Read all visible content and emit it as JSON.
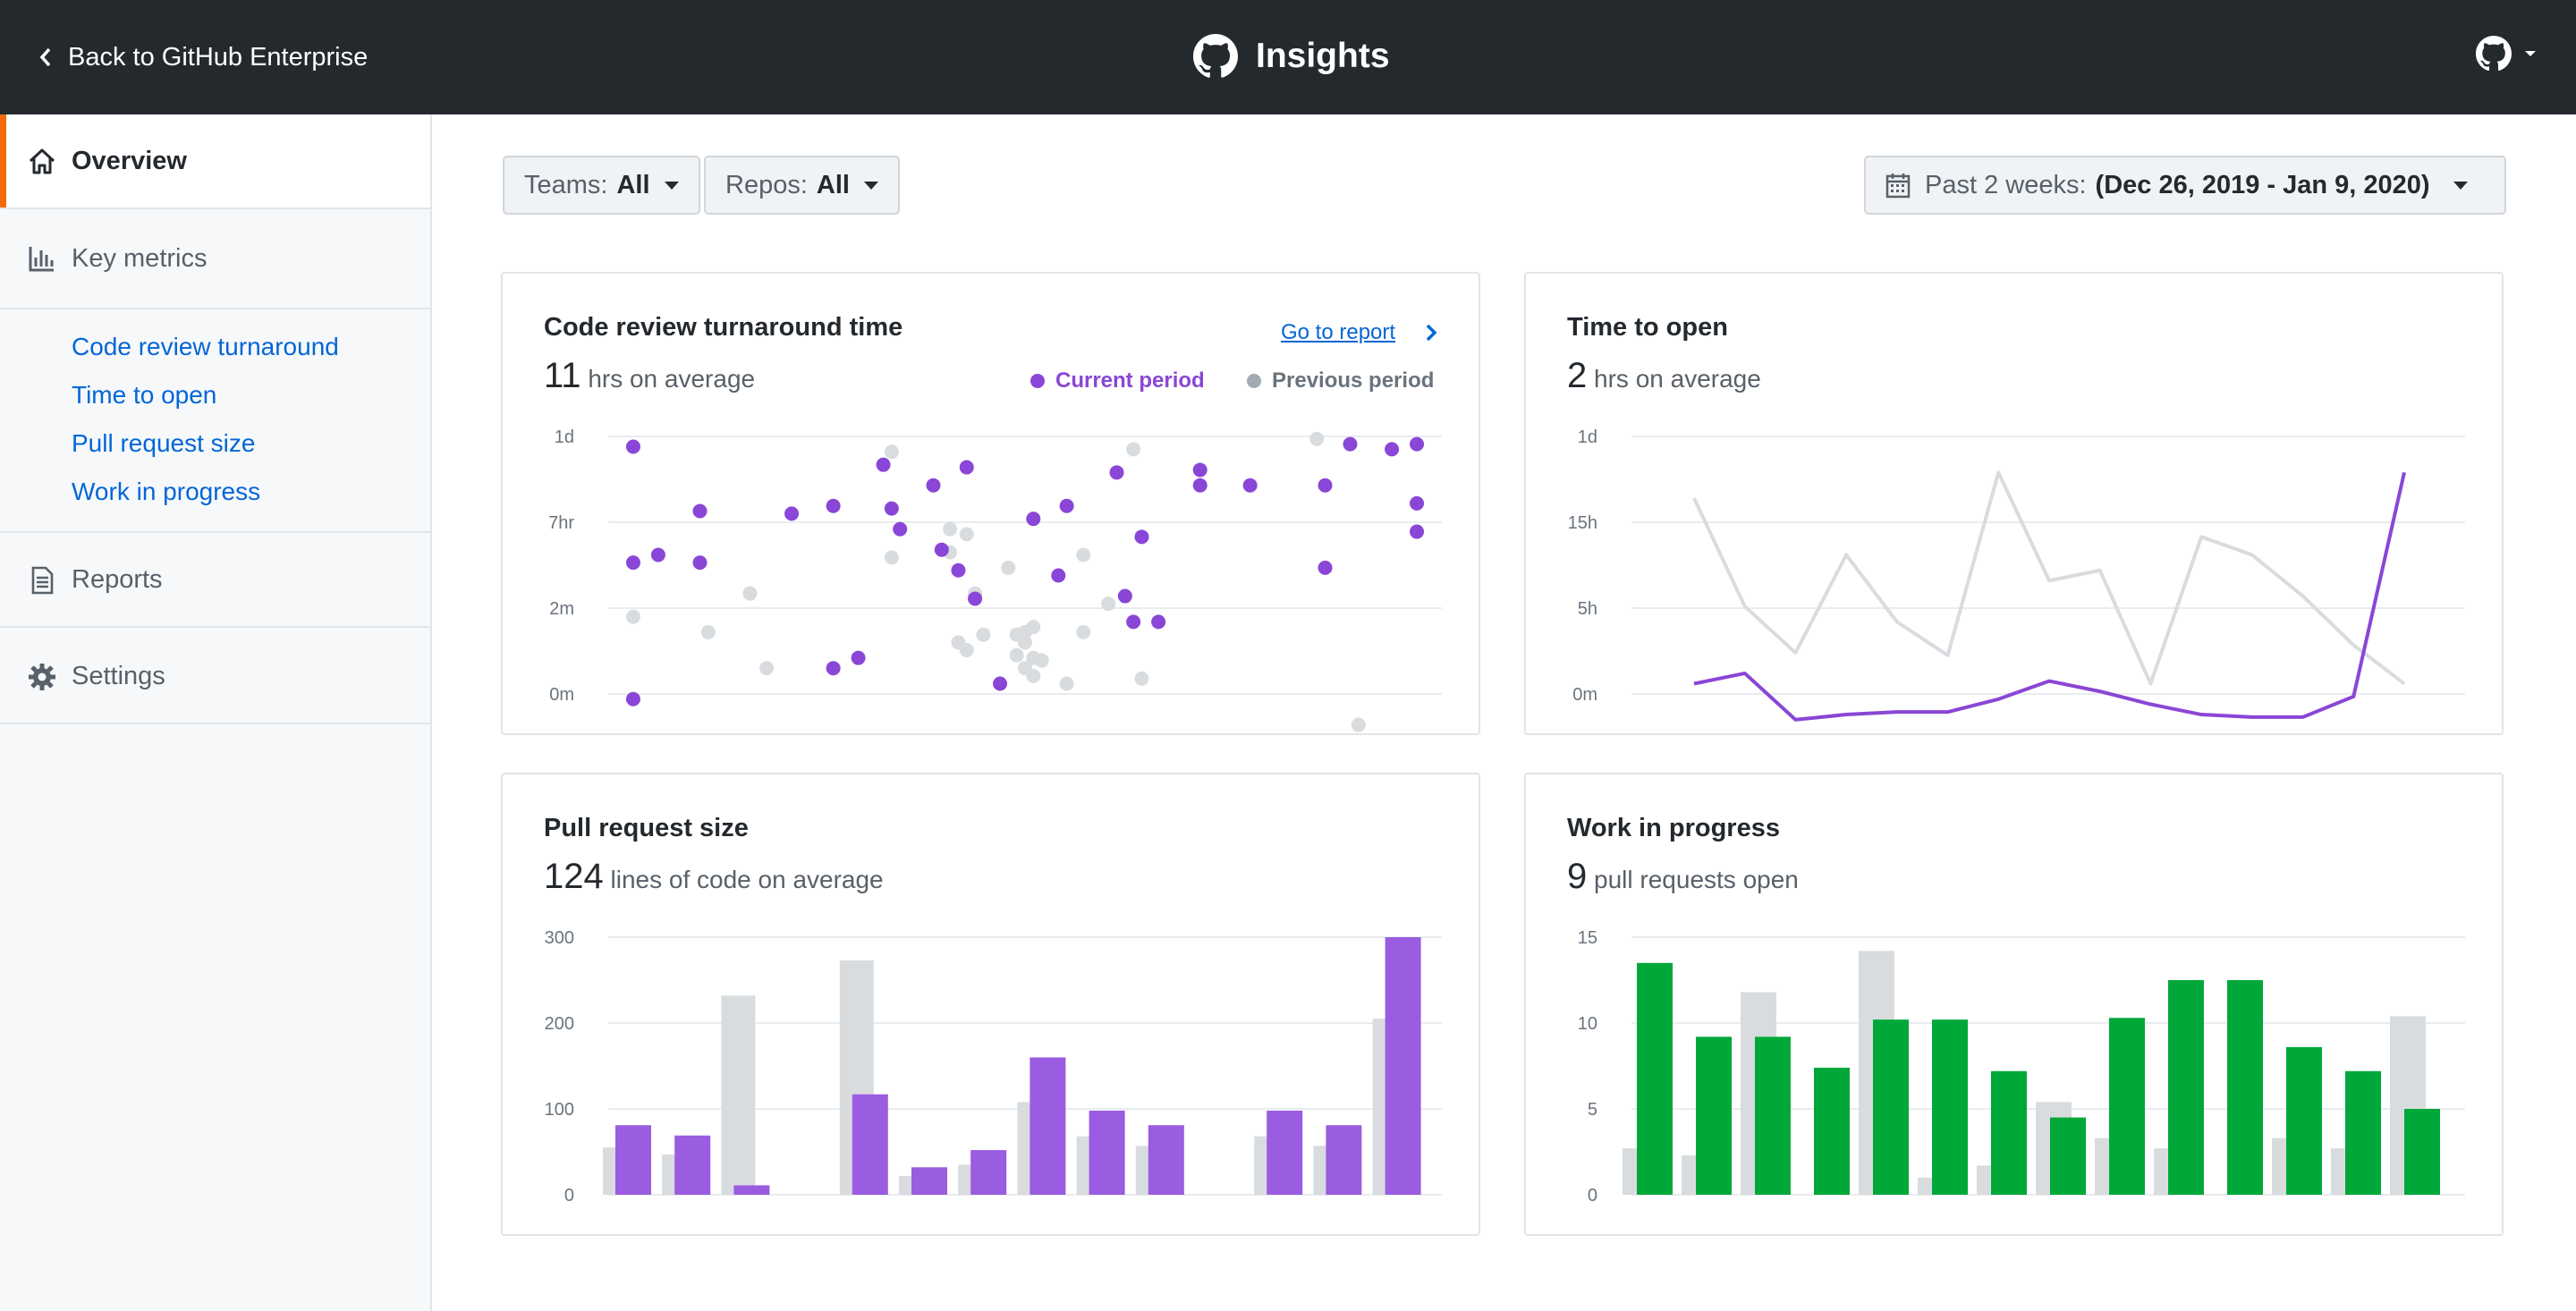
{
  "header": {
    "back_label": "Back to GitHub Enterprise",
    "app_title": "Insights"
  },
  "sidebar": {
    "overview": "Overview",
    "key_metrics": "Key metrics",
    "metric_links": [
      "Code review turnaround",
      "Time to open",
      "Pull request size",
      "Work in progress"
    ],
    "reports": "Reports",
    "settings": "Settings"
  },
  "filters": {
    "teams_label": "Teams:",
    "teams_value": "All",
    "repos_label": "Repos:",
    "repos_value": "All",
    "range_label": "Past 2 weeks:",
    "range_value": "(Dec 26, 2019 - Jan 9, 2020)"
  },
  "colors": {
    "purple": "#8a46d6",
    "purple_bar": "#9a5ce0",
    "gray": "#d9dcdf",
    "green": "#00a83a",
    "accent": "#f66a0a",
    "link": "#0366d6"
  },
  "cards": {
    "review": {
      "title": "Code review turnaround time",
      "metric": "11",
      "metric_unit": "hrs on average",
      "report_link": "Go to report",
      "legend_current": "Current period",
      "legend_previous": "Previous period"
    },
    "open": {
      "title": "Time to open",
      "metric": "2",
      "metric_unit": "hrs on average"
    },
    "prsize": {
      "title": "Pull request size",
      "metric": "124",
      "metric_unit": "lines of code on average"
    },
    "wip": {
      "title": "Work in progress",
      "metric": "9",
      "metric_unit": "pull requests open"
    }
  },
  "chart_data": [
    {
      "type": "scatter",
      "title": "Code review turnaround time",
      "y_ticks": [
        "1d",
        "7hr",
        "2m",
        "0m"
      ],
      "series": [
        {
          "name": "Current period",
          "color": "#8a46d6",
          "points": [
            [
              0.03,
              0.96
            ],
            [
              0.03,
              0.51
            ],
            [
              0.06,
              0.54
            ],
            [
              0.11,
              0.71
            ],
            [
              0.11,
              0.51
            ],
            [
              0.22,
              0.7
            ],
            [
              0.27,
              0.73
            ],
            [
              0.27,
              0.1
            ],
            [
              0.3,
              0.14
            ],
            [
              0.33,
              0.89
            ],
            [
              0.34,
              0.72
            ],
            [
              0.35,
              0.64
            ],
            [
              0.39,
              0.81
            ],
            [
              0.4,
              0.56
            ],
            [
              0.42,
              0.48
            ],
            [
              0.43,
              0.88
            ],
            [
              0.44,
              0.37
            ],
            [
              0.47,
              0.04
            ],
            [
              0.51,
              0.68
            ],
            [
              0.54,
              0.46
            ],
            [
              0.55,
              0.73
            ],
            [
              0.61,
              0.86
            ],
            [
              0.62,
              0.38
            ],
            [
              0.63,
              0.28
            ],
            [
              0.64,
              0.61
            ],
            [
              0.66,
              0.28
            ],
            [
              0.71,
              0.87
            ],
            [
              0.71,
              0.81
            ],
            [
              0.77,
              0.81
            ],
            [
              0.86,
              0.81
            ],
            [
              0.86,
              0.49
            ],
            [
              0.89,
              0.97
            ],
            [
              0.94,
              0.95
            ],
            [
              0.97,
              0.97
            ],
            [
              0.97,
              0.74
            ],
            [
              0.97,
              0.63
            ],
            [
              0.03,
              -0.02
            ]
          ]
        },
        {
          "name": "Previous period",
          "color": "#d9dcdf",
          "points": [
            [
              0.12,
              0.24
            ],
            [
              0.17,
              0.39
            ],
            [
              0.19,
              0.1
            ],
            [
              0.34,
              0.94
            ],
            [
              0.34,
              0.53
            ],
            [
              0.41,
              0.64
            ],
            [
              0.41,
              0.55
            ],
            [
              0.43,
              0.62
            ],
            [
              0.42,
              0.2
            ],
            [
              0.43,
              0.17
            ],
            [
              0.44,
              0.39
            ],
            [
              0.45,
              0.23
            ],
            [
              0.48,
              0.49
            ],
            [
              0.49,
              0.23
            ],
            [
              0.49,
              0.15
            ],
            [
              0.5,
              0.24
            ],
            [
              0.5,
              0.2
            ],
            [
              0.51,
              0.26
            ],
            [
              0.51,
              0.14
            ],
            [
              0.5,
              0.1
            ],
            [
              0.51,
              0.07
            ],
            [
              0.52,
              0.13
            ],
            [
              0.55,
              0.04
            ],
            [
              0.57,
              0.54
            ],
            [
              0.57,
              0.24
            ],
            [
              0.63,
              0.95
            ],
            [
              0.64,
              0.06
            ],
            [
              0.85,
              0.99
            ],
            [
              0.9,
              -0.12
            ],
            [
              0.03,
              0.3
            ],
            [
              0.6,
              0.35
            ]
          ]
        }
      ]
    },
    {
      "type": "line",
      "title": "Time to open",
      "y_ticks": [
        "1d",
        "15h",
        "5h",
        "0m"
      ],
      "series": [
        {
          "name": "Previous period",
          "color": "#d9dcdf",
          "values": [
            0.76,
            0.34,
            0.16,
            0.54,
            0.28,
            0.15,
            0.86,
            0.44,
            0.48,
            0.04,
            0.61,
            0.54,
            0.38,
            0.19,
            0.04
          ]
        },
        {
          "name": "Current period",
          "color": "#8a46d6",
          "values": [
            0.04,
            0.08,
            -0.1,
            -0.08,
            -0.07,
            -0.07,
            -0.02,
            0.05,
            0.01,
            -0.04,
            -0.08,
            -0.09,
            -0.09,
            -0.01,
            0.86
          ]
        }
      ]
    },
    {
      "type": "bar",
      "title": "Pull request size",
      "y_ticks": [
        "300",
        "200",
        "100",
        "0"
      ],
      "ylim": [
        0,
        300
      ],
      "series": [
        {
          "name": "Previous period",
          "color": "#d9dcdf",
          "values": [
            55,
            47,
            232,
            0,
            273,
            22,
            35,
            108,
            68,
            57,
            0,
            68,
            57,
            205
          ]
        },
        {
          "name": "Current period",
          "color": "#9a5ce0",
          "values": [
            81,
            69,
            11,
            0,
            117,
            32,
            52,
            160,
            98,
            81,
            0,
            98,
            81,
            300
          ]
        }
      ]
    },
    {
      "type": "bar",
      "title": "Work in progress",
      "y_ticks": [
        "15",
        "10",
        "5",
        "0"
      ],
      "ylim": [
        0,
        15
      ],
      "series": [
        {
          "name": "Previous period",
          "color": "#d9dcdf",
          "values": [
            2.7,
            2.3,
            11.8,
            0,
            14.2,
            1.0,
            1.7,
            5.4,
            3.3,
            2.7,
            0,
            3.3,
            2.7,
            10.4
          ]
        },
        {
          "name": "Current period",
          "color": "#00a83a",
          "values": [
            13.5,
            9.2,
            9.2,
            7.4,
            10.2,
            10.2,
            7.2,
            4.5,
            10.3,
            12.5,
            12.5,
            8.6,
            7.2,
            5.0
          ]
        }
      ]
    }
  ]
}
